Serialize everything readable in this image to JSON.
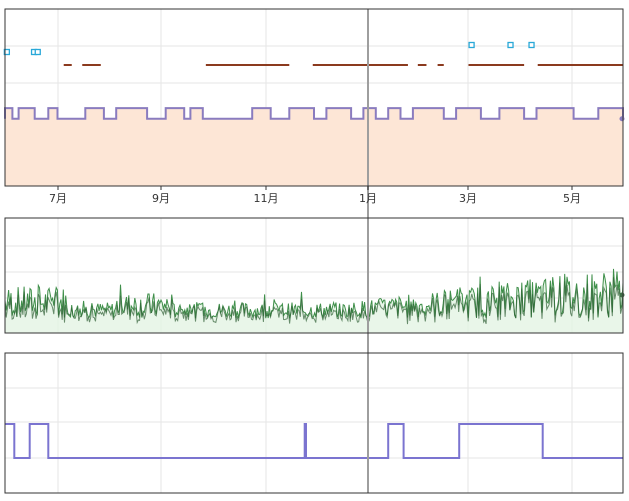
{
  "x_axis": {
    "month_labels": [
      "7月",
      "9月",
      "11月",
      "1月",
      "3月",
      "5月"
    ]
  },
  "panels": [
    {
      "name": "top-panel",
      "series": [
        {
          "kind": "event-markers",
          "color": "#29a8d8",
          "points": [
            0.003,
            0.047,
            0.053,
            0.755,
            0.818,
            0.852
          ]
        },
        {
          "kind": "segments",
          "color": "#8b3a1e",
          "ranges": [
            [
              0.095,
              0.108
            ],
            [
              0.125,
              0.155
            ],
            [
              0.325,
              0.46
            ],
            [
              0.498,
              0.652
            ],
            [
              0.668,
              0.682
            ],
            [
              0.7,
              0.71
            ],
            [
              0.75,
              0.84
            ],
            [
              0.862,
              1.0
            ]
          ]
        },
        {
          "kind": "step-area",
          "line_color": "#8a7cbf",
          "fill_color": "#fde6d6",
          "level_normal": 0.38,
          "level_high": 0.32,
          "high_intervals": [
            [
              0.0,
              0.012
            ],
            [
              0.022,
              0.048
            ],
            [
              0.07,
              0.085
            ],
            [
              0.13,
              0.16
            ],
            [
              0.18,
              0.23
            ],
            [
              0.26,
              0.29
            ],
            [
              0.3,
              0.32
            ],
            [
              0.4,
              0.43
            ],
            [
              0.46,
              0.5
            ],
            [
              0.52,
              0.56
            ],
            [
              0.58,
              0.6
            ],
            [
              0.62,
              0.64
            ],
            [
              0.66,
              0.71
            ],
            [
              0.73,
              0.77
            ],
            [
              0.8,
              0.84
            ],
            [
              0.86,
              0.92
            ],
            [
              0.96,
              1.0
            ]
          ]
        }
      ]
    },
    {
      "name": "middle-panel",
      "series": [
        {
          "kind": "noisy-line",
          "color": "#3f8f4a",
          "fill_color": "#e3f4e4"
        }
      ]
    },
    {
      "name": "bottom-panel",
      "series": [
        {
          "kind": "step-line",
          "color": "#7b74d0",
          "level_low": 0.0,
          "level_high": 1.0,
          "high_intervals": [
            [
              0.0,
              0.015
            ],
            [
              0.04,
              0.07
            ],
            [
              0.485,
              0.487
            ],
            [
              0.62,
              0.645
            ],
            [
              0.735,
              0.87
            ]
          ]
        }
      ]
    }
  ],
  "colors": {
    "grid": "#e6e6e6",
    "frame": "#333333",
    "cursor": "#9e9e9e"
  }
}
